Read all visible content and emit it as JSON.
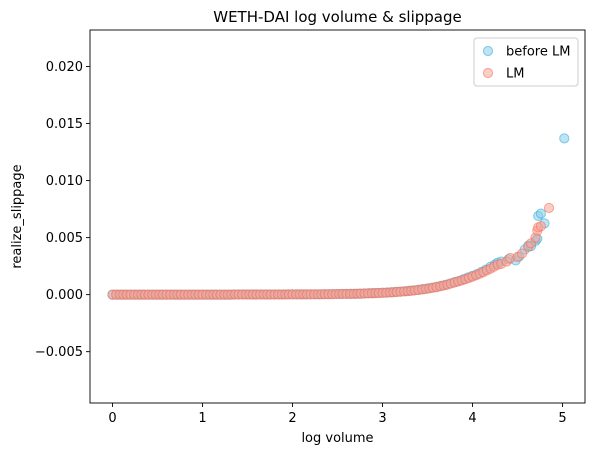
{
  "chart_data": {
    "type": "scatter",
    "title": "WETH-DAI log volume & slippage",
    "xlabel": "log volume",
    "ylabel": "realize_slippage",
    "xlim": [
      -0.25,
      5.25
    ],
    "ylim": [
      -0.0095,
      0.0232
    ],
    "xticks": [
      0,
      1,
      2,
      3,
      4,
      5
    ],
    "xtick_labels": [
      "0",
      "1",
      "2",
      "3",
      "4",
      "5"
    ],
    "yticks": [
      -0.005,
      0.0,
      0.005,
      0.01,
      0.015,
      0.02
    ],
    "ytick_labels": [
      "−0.005",
      "0.000",
      "0.005",
      "0.010",
      "0.015",
      "0.020"
    ],
    "grid": false,
    "legend_position": "top-right",
    "series": [
      {
        "name": "before LM",
        "color": "#87CEEB",
        "edge_color": "#29A8D6",
        "points": [
          [
            0.0,
            0.0
          ],
          [
            0.05,
            0.0
          ],
          [
            0.1,
            0.0
          ],
          [
            0.15,
            0.0
          ],
          [
            0.2,
            0.0
          ],
          [
            0.25,
            0.0
          ],
          [
            0.3,
            0.0
          ],
          [
            0.35,
            0.0
          ],
          [
            0.4,
            0.0
          ],
          [
            0.45,
            0.0
          ],
          [
            0.5,
            0.0
          ],
          [
            0.55,
            0.0
          ],
          [
            0.6,
            0.0
          ],
          [
            0.65,
            0.0
          ],
          [
            0.7,
            0.0
          ],
          [
            0.75,
            0.0
          ],
          [
            0.8,
            0.0
          ],
          [
            0.85,
            0.0
          ],
          [
            0.9,
            0.0
          ],
          [
            0.95,
            0.0
          ],
          [
            1.0,
            0.0
          ],
          [
            1.05,
            0.0
          ],
          [
            1.1,
            0.0
          ],
          [
            1.15,
            0.0
          ],
          [
            1.2,
            0.0
          ],
          [
            1.25,
            0.0
          ],
          [
            1.3,
            0.0
          ],
          [
            1.35,
            1e-05
          ],
          [
            1.4,
            1e-05
          ],
          [
            1.45,
            1e-05
          ],
          [
            1.5,
            1e-05
          ],
          [
            1.55,
            1e-05
          ],
          [
            1.6,
            1e-05
          ],
          [
            1.65,
            1e-05
          ],
          [
            1.7,
            1e-05
          ],
          [
            1.75,
            1e-05
          ],
          [
            1.8,
            1e-05
          ],
          [
            1.85,
            1e-05
          ],
          [
            1.9,
            1e-05
          ],
          [
            1.95,
            2e-05
          ],
          [
            2.0,
            2e-05
          ],
          [
            2.05,
            2e-05
          ],
          [
            2.1,
            2e-05
          ],
          [
            2.15,
            2e-05
          ],
          [
            2.2,
            3e-05
          ],
          [
            2.25,
            3e-05
          ],
          [
            2.3,
            3e-05
          ],
          [
            2.35,
            4e-05
          ],
          [
            2.4,
            4e-05
          ],
          [
            2.45,
            5e-05
          ],
          [
            2.5,
            5e-05
          ],
          [
            2.55,
            6e-05
          ],
          [
            2.6,
            7e-05
          ],
          [
            2.65,
            7e-05
          ],
          [
            2.7,
            8e-05
          ],
          [
            2.75,
            9e-05
          ],
          [
            2.8,
            0.0001
          ],
          [
            2.85,
            0.00012
          ],
          [
            2.9,
            0.00013
          ],
          [
            2.95,
            0.00015
          ],
          [
            3.0,
            0.00017
          ],
          [
            3.05,
            0.00019
          ],
          [
            3.1,
            0.00021
          ],
          [
            3.15,
            0.00024
          ],
          [
            3.2,
            0.00027
          ],
          [
            3.25,
            0.0003
          ],
          [
            3.3,
            0.00034
          ],
          [
            3.35,
            0.00038
          ],
          [
            3.4,
            0.00043
          ],
          [
            3.45,
            0.00048
          ],
          [
            3.5,
            0.00054
          ],
          [
            3.55,
            0.00061
          ],
          [
            3.6,
            0.00068
          ],
          [
            3.65,
            0.00077
          ],
          [
            3.7,
            0.00086
          ],
          [
            3.75,
            0.00097
          ],
          [
            3.8,
            0.0011
          ],
          [
            3.85,
            0.0012
          ],
          [
            3.9,
            0.00135
          ],
          [
            3.95,
            0.0015
          ],
          [
            4.0,
            0.00165
          ],
          [
            4.05,
            0.0018
          ],
          [
            4.1,
            0.002
          ],
          [
            4.15,
            0.0022
          ],
          [
            4.2,
            0.00245
          ],
          [
            4.25,
            0.00265
          ],
          [
            4.28,
            0.0028
          ],
          [
            4.32,
            0.0029
          ],
          [
            4.4,
            0.0031
          ],
          [
            4.48,
            0.003
          ],
          [
            4.52,
            0.00335
          ],
          [
            4.58,
            0.00395
          ],
          [
            4.62,
            0.0043
          ],
          [
            4.65,
            0.00425
          ],
          [
            4.7,
            0.0047
          ],
          [
            4.72,
            0.0049
          ],
          [
            4.73,
            0.0069
          ],
          [
            4.76,
            0.0071
          ],
          [
            4.8,
            0.00625
          ],
          [
            5.02,
            0.0137
          ]
        ]
      },
      {
        "name": "LM",
        "color": "#F4A69A",
        "edge_color": "#FF6347",
        "points": [
          [
            0.0,
            0.0
          ],
          [
            0.04,
            0.0
          ],
          [
            0.08,
            0.0
          ],
          [
            0.12,
            0.0
          ],
          [
            0.16,
            0.0
          ],
          [
            0.2,
            0.0
          ],
          [
            0.24,
            0.0
          ],
          [
            0.28,
            0.0
          ],
          [
            0.32,
            0.0
          ],
          [
            0.36,
            0.0
          ],
          [
            0.4,
            0.0
          ],
          [
            0.44,
            0.0
          ],
          [
            0.48,
            0.0
          ],
          [
            0.52,
            0.0
          ],
          [
            0.56,
            0.0
          ],
          [
            0.6,
            0.0
          ],
          [
            0.64,
            0.0
          ],
          [
            0.68,
            0.0
          ],
          [
            0.72,
            0.0
          ],
          [
            0.76,
            0.0
          ],
          [
            0.8,
            0.0
          ],
          [
            0.84,
            0.0
          ],
          [
            0.88,
            0.0
          ],
          [
            0.92,
            0.0
          ],
          [
            0.96,
            0.0
          ],
          [
            1.0,
            0.0
          ],
          [
            1.04,
            0.0
          ],
          [
            1.08,
            0.0
          ],
          [
            1.12,
            0.0
          ],
          [
            1.16,
            0.0
          ],
          [
            1.2,
            0.0
          ],
          [
            1.24,
            0.0
          ],
          [
            1.28,
            0.0
          ],
          [
            1.32,
            0.0
          ],
          [
            1.36,
            1e-05
          ],
          [
            1.4,
            1e-05
          ],
          [
            1.44,
            1e-05
          ],
          [
            1.48,
            1e-05
          ],
          [
            1.52,
            1e-05
          ],
          [
            1.56,
            1e-05
          ],
          [
            1.6,
            1e-05
          ],
          [
            1.64,
            1e-05
          ],
          [
            1.68,
            1e-05
          ],
          [
            1.72,
            1e-05
          ],
          [
            1.76,
            1e-05
          ],
          [
            1.8,
            1e-05
          ],
          [
            1.84,
            1e-05
          ],
          [
            1.88,
            1e-05
          ],
          [
            1.92,
            1e-05
          ],
          [
            1.96,
            2e-05
          ],
          [
            2.0,
            2e-05
          ],
          [
            2.04,
            2e-05
          ],
          [
            2.08,
            2e-05
          ],
          [
            2.12,
            2e-05
          ],
          [
            2.16,
            2e-05
          ],
          [
            2.2,
            3e-05
          ],
          [
            2.24,
            3e-05
          ],
          [
            2.28,
            3e-05
          ],
          [
            2.32,
            3e-05
          ],
          [
            2.36,
            4e-05
          ],
          [
            2.4,
            4e-05
          ],
          [
            2.44,
            4e-05
          ],
          [
            2.48,
            5e-05
          ],
          [
            2.52,
            5e-05
          ],
          [
            2.56,
            6e-05
          ],
          [
            2.6,
            6e-05
          ],
          [
            2.64,
            7e-05
          ],
          [
            2.68,
            7e-05
          ],
          [
            2.72,
            8e-05
          ],
          [
            2.76,
            9e-05
          ],
          [
            2.8,
            0.0001
          ],
          [
            2.84,
            0.00011
          ],
          [
            2.88,
            0.00012
          ],
          [
            2.92,
            0.00013
          ],
          [
            2.96,
            0.00014
          ],
          [
            3.0,
            0.00016
          ],
          [
            3.04,
            0.00017
          ],
          [
            3.08,
            0.00019
          ],
          [
            3.12,
            0.00021
          ],
          [
            3.16,
            0.00023
          ],
          [
            3.2,
            0.00025
          ],
          [
            3.24,
            0.00028
          ],
          [
            3.28,
            0.00031
          ],
          [
            3.32,
            0.00034
          ],
          [
            3.36,
            0.00037
          ],
          [
            3.4,
            0.00041
          ],
          [
            3.44,
            0.00045
          ],
          [
            3.48,
            0.0005
          ],
          [
            3.52,
            0.00055
          ],
          [
            3.56,
            0.0006
          ],
          [
            3.6,
            0.00066
          ],
          [
            3.64,
            0.00073
          ],
          [
            3.68,
            0.0008
          ],
          [
            3.72,
            0.00088
          ],
          [
            3.76,
            0.00097
          ],
          [
            3.8,
            0.00106
          ],
          [
            3.84,
            0.00115
          ],
          [
            3.88,
            0.00125
          ],
          [
            3.92,
            0.00135
          ],
          [
            3.96,
            0.00146
          ],
          [
            4.0,
            0.00158
          ],
          [
            4.04,
            0.0017
          ],
          [
            4.08,
            0.00183
          ],
          [
            4.12,
            0.00197
          ],
          [
            4.16,
            0.00212
          ],
          [
            4.2,
            0.00228
          ],
          [
            4.24,
            0.00245
          ],
          [
            4.28,
            0.00262
          ],
          [
            4.32,
            0.0027
          ],
          [
            4.38,
            0.0029
          ],
          [
            4.42,
            0.0032
          ],
          [
            4.5,
            0.0033
          ],
          [
            4.55,
            0.0036
          ],
          [
            4.62,
            0.0042
          ],
          [
            4.65,
            0.0045
          ],
          [
            4.7,
            0.005
          ],
          [
            4.72,
            0.0056
          ],
          [
            4.73,
            0.0059
          ],
          [
            4.76,
            0.006
          ],
          [
            4.85,
            0.0076
          ]
        ]
      }
    ]
  }
}
